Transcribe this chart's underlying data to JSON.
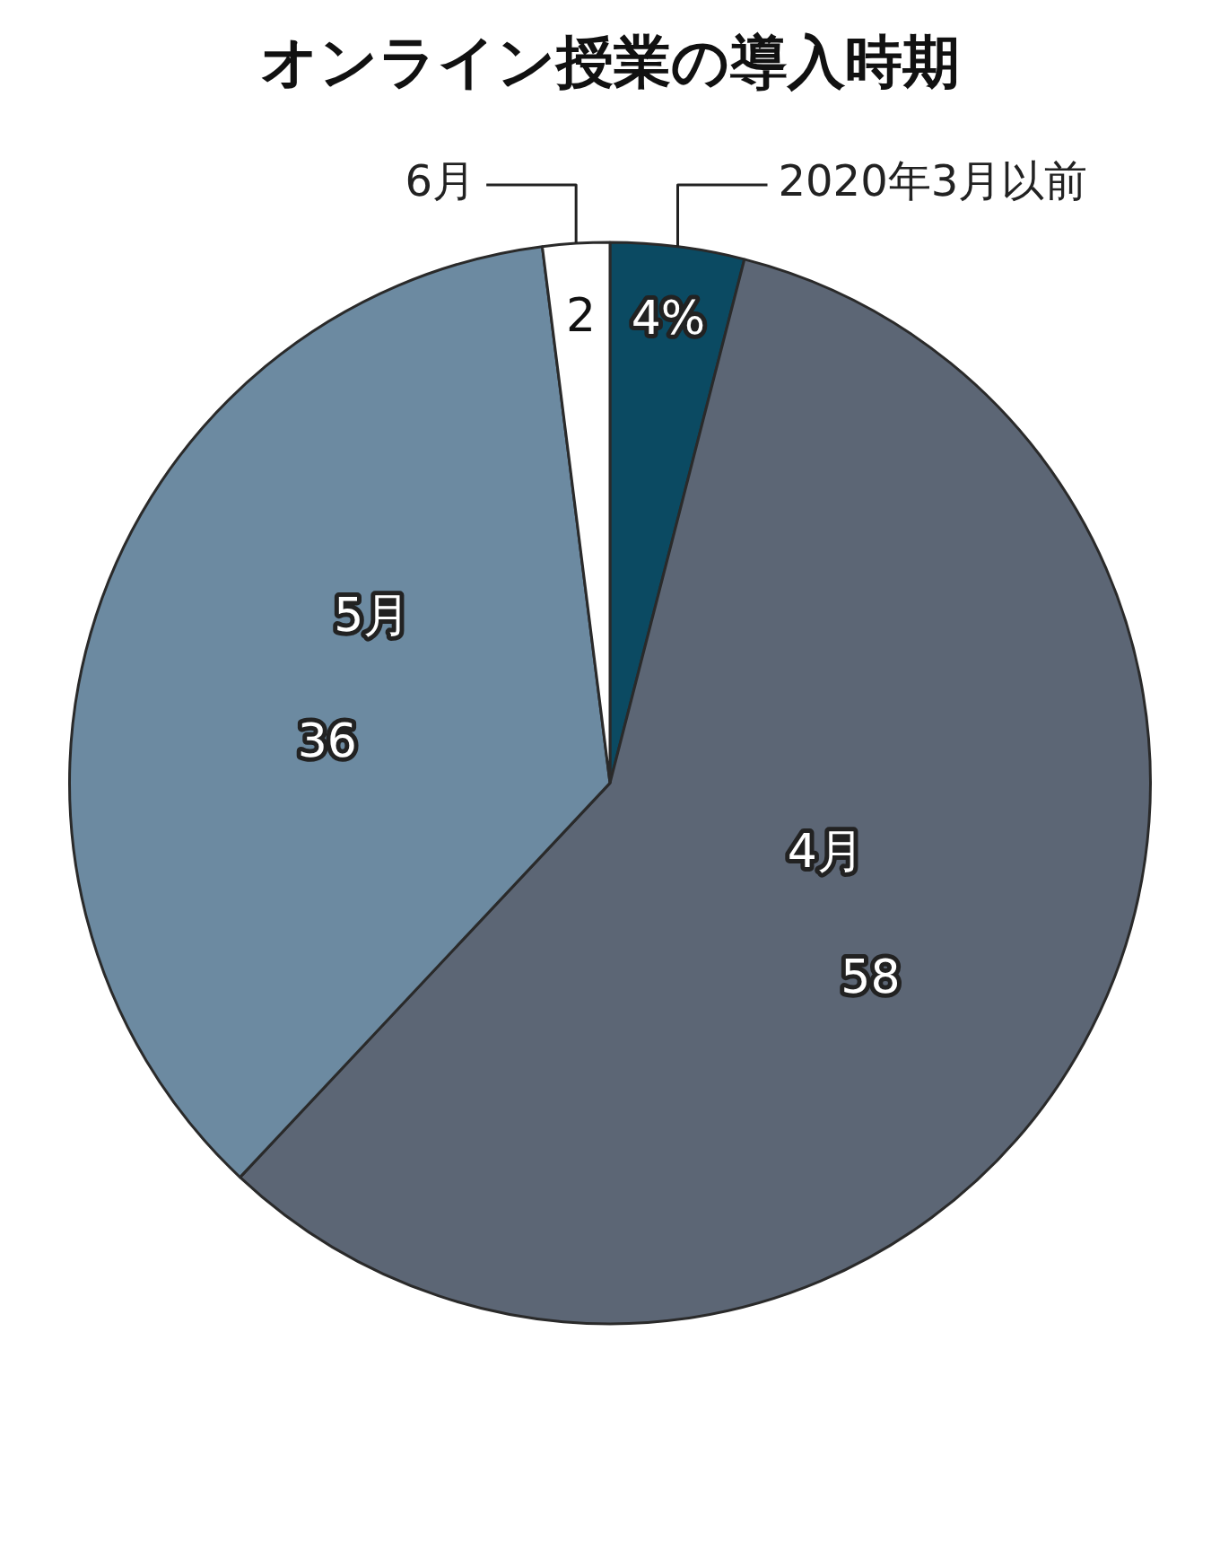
{
  "chart_data": {
    "type": "pie",
    "title": "オンライン授業の導入時期",
    "categories": [
      "2020年3月以前",
      "4月",
      "5月",
      "6月"
    ],
    "values": [
      4,
      58,
      36,
      2
    ],
    "colors": [
      "#0b4a62",
      "#5c6675",
      "#6c8aa1",
      "#ffffff"
    ],
    "value_labels": [
      "4%",
      "58",
      "36",
      "2"
    ],
    "legend": false
  }
}
